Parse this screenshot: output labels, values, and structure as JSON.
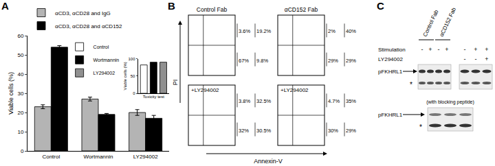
{
  "panel_labels": [
    "A",
    "B",
    "C"
  ],
  "chart_data": [
    {
      "type": "bar",
      "categories": [
        "Control",
        "Wortmannin",
        "LY294002"
      ],
      "series": [
        {
          "name": "αCD3, αCD28 and IgG",
          "color": "#b4b4b4",
          "values": [
            23,
            27,
            20
          ],
          "errors": [
            1,
            1,
            1.5
          ]
        },
        {
          "name": "αCD3, αCD28 and αCD152",
          "color": "#000000",
          "values": [
            54,
            19,
            17
          ],
          "errors": [
            0.8,
            0.5,
            1.5
          ]
        }
      ],
      "y_label": "Viable cells (%)",
      "ylim": [
        0,
        60
      ],
      "yticks": [
        0,
        10,
        20,
        30,
        40,
        50,
        60
      ],
      "legend": "top left"
    },
    {
      "type": "bar",
      "x_label": "Toxicity test",
      "y_label": "Viable cells (%)",
      "categories": [
        "Control",
        "Wortmannin",
        "LY294002"
      ],
      "values": [
        82,
        90,
        90
      ],
      "colors": [
        "#ffffff",
        "#000000",
        "#909090"
      ],
      "ylim": [
        0,
        100
      ],
      "yticks": [
        0,
        50,
        100
      ],
      "tick_labels": "y",
      "legend": "top"
    }
  ],
  "flow_cytometry": {
    "x_label": "Annexin-V",
    "y_label": "PI",
    "plots": [
      {
        "title": "Control Fab",
        "quadrants": [
          [
            "3.6%",
            "19.2%"
          ],
          [
            "67%",
            "9.8%"
          ]
        ]
      },
      {
        "title": "αCD152 Fab",
        "quadrants": [
          [
            "2%",
            "40%"
          ],
          [
            "29%",
            "29%"
          ]
        ]
      },
      {
        "title": "+LY294002",
        "quadrants": [
          [
            "3.8%",
            "32.5%"
          ],
          [
            "32%",
            "30.5%"
          ]
        ]
      },
      {
        "title": "+LY294002",
        "quadrants": [
          [
            "4.7%",
            "35%"
          ],
          [
            "30%",
            "29%"
          ]
        ]
      }
    ]
  },
  "western_blot": {
    "row_labels": {
      "stimulation": "Stimulation",
      "inhibitor": "LY294002"
    },
    "left_blot": {
      "groups": [
        "Control Fab",
        "αCD152 Fab"
      ],
      "stimulation": [
        "-",
        "+",
        "-",
        "+"
      ]
    },
    "right_blot": {
      "stimulation": [
        "-",
        "+",
        "+"
      ],
      "inhibitor": [
        "-",
        "-",
        "+"
      ]
    },
    "band_label": "pFKHRL1",
    "nonspecific_mark": "*",
    "peptide_blot": {
      "caption": "(with blocking peptide)",
      "band_label": "pFKHRL1",
      "nonspecific_mark": "*"
    }
  }
}
